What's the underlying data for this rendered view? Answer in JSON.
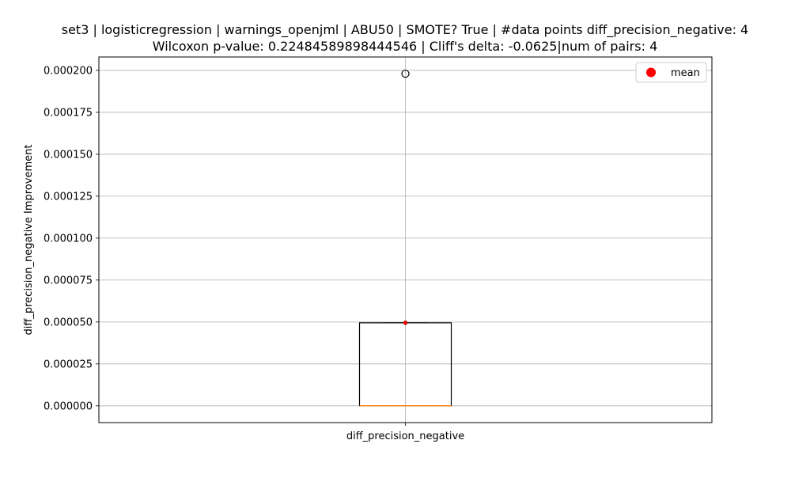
{
  "chart_data": {
    "type": "box",
    "title_line1": "set3 | logisticregression | warnings_openjml | ABU50 | SMOTE? True | #data points diff_precision_negative: 4",
    "title_line2": "Wilcoxon p-value: 0.22484589898444546 | Cliff's delta: -0.0625|num of pairs: 4",
    "xlabel": "",
    "ylabel": "diff_precision_negative Improvement",
    "categories": [
      "diff_precision_negative"
    ],
    "ylim": [
      -1e-05,
      0.000208
    ],
    "yticks": [
      0.0,
      2.5e-05,
      5e-05,
      7.5e-05,
      0.0001,
      0.000125,
      0.00015,
      0.000175,
      0.0002
    ],
    "ytick_labels": [
      "0.000000",
      "0.000025",
      "0.000050",
      "0.000075",
      "0.000100",
      "0.000125",
      "0.000150",
      "0.000175",
      "0.000200"
    ],
    "grid": true,
    "legend": {
      "position": "top-right",
      "entries": [
        {
          "label": "mean",
          "color": "#ff0000",
          "marker": "circle"
        }
      ]
    },
    "boxes": [
      {
        "name": "diff_precision_negative",
        "whisker_low": 0.0,
        "q1": 0.0,
        "median": 0.0,
        "q3": 4.95e-05,
        "whisker_high": 4.95e-05,
        "mean": 4.95e-05,
        "outliers": [
          0.000198
        ]
      }
    ],
    "colors": {
      "box": "#000000",
      "median": "#ff7f0e",
      "mean": "#ff0000",
      "grid": "#b0b0b0"
    }
  }
}
